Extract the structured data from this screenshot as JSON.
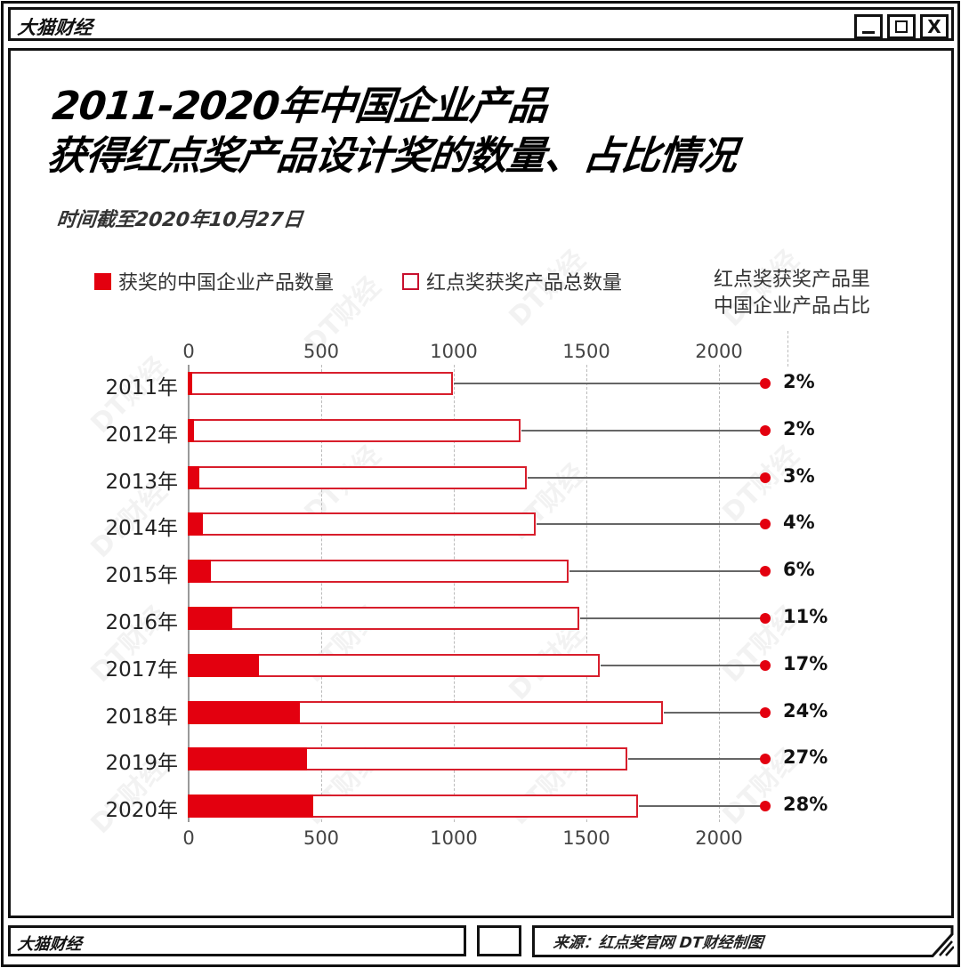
{
  "window": {
    "brand": "大猫财经",
    "buttons": {
      "minimize": "_",
      "maximize": "□",
      "close": "X"
    }
  },
  "header": {
    "title_line1": "2011-2020年中国企业产品",
    "title_line2": "获得红点奖产品设计奖的数量、占比情况",
    "subtitle": "时间截至2020年10月27日"
  },
  "legend": {
    "series1": "获奖的中国企业产品数量",
    "series2": "红点奖获奖产品总数量",
    "series3_line1": "红点奖获奖产品里",
    "series3_line2": "中国企业产品占比"
  },
  "footer": {
    "left": "大猫财经",
    "right": "来源：红点奖官网  DT财经制图"
  },
  "watermark": "DT财经",
  "colors": {
    "accent_red": "#e3000f",
    "bar_border": "#d81e2c",
    "connector": "#666666"
  },
  "chart_data": {
    "type": "bar",
    "orientation": "horizontal",
    "title": "2011-2020年中国企业产品获得红点奖产品设计奖的数量、占比情况",
    "subtitle": "时间截至2020年10月27日",
    "categories": [
      "2011年",
      "2012年",
      "2013年",
      "2014年",
      "2015年",
      "2016年",
      "2017年",
      "2018年",
      "2019年",
      "2020年"
    ],
    "series": [
      {
        "name": "获奖的中国企业产品数量",
        "values": [
          17,
          23,
          43,
          57,
          87,
          168,
          268,
          423,
          450,
          473
        ]
      },
      {
        "name": "红点奖获奖产品总数量",
        "values": [
          1000,
          1255,
          1278,
          1312,
          1436,
          1477,
          1554,
          1792,
          1658,
          1698
        ]
      },
      {
        "name": "红点奖获奖产品里中国企业产品占比",
        "values": [
          "2%",
          "2%",
          "3%",
          "4%",
          "6%",
          "11%",
          "17%",
          "24%",
          "27%",
          "28%"
        ]
      }
    ],
    "xticks": [
      "0",
      "500",
      "1000",
      "1500",
      "2000"
    ],
    "xlim": [
      0,
      2200
    ],
    "xlabel": "",
    "ylabel": "",
    "grid": "vertical dashed",
    "legend_position": "top",
    "source": "来源：红点奖官网  DT财经制图"
  }
}
